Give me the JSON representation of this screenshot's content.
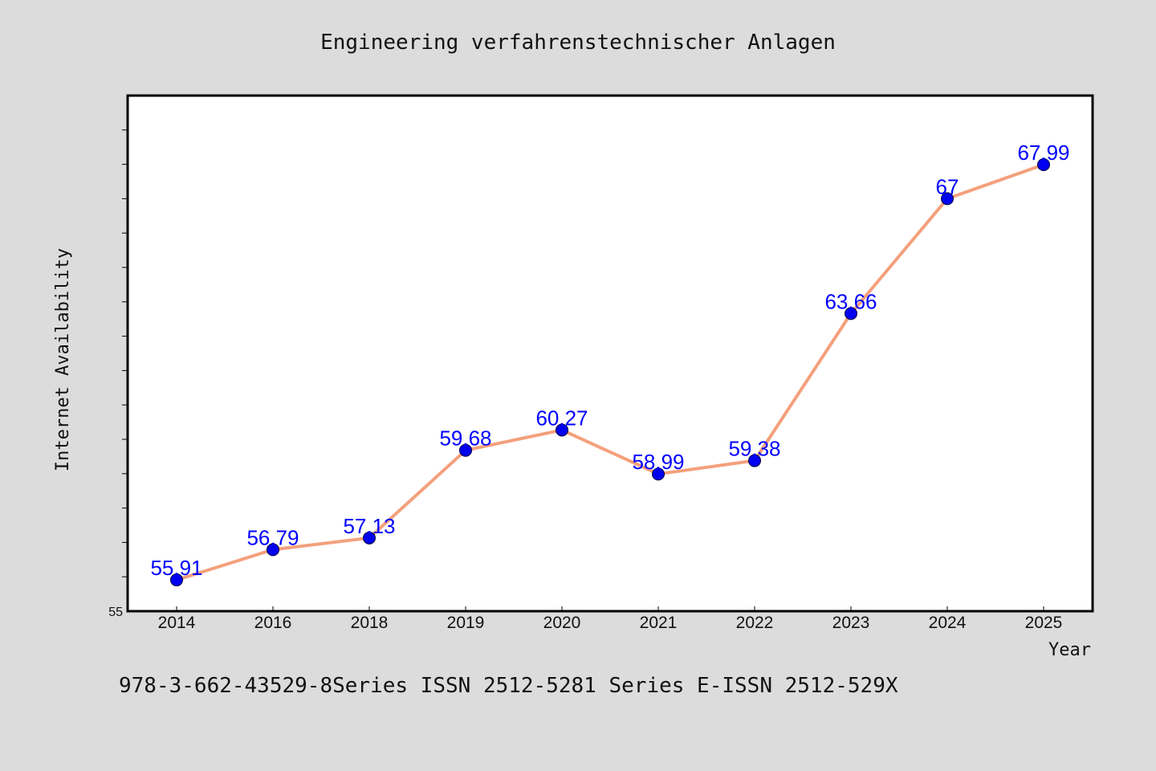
{
  "chart_data": {
    "type": "line",
    "title": "Engineering verfahrenstechnischer Anlagen",
    "xlabel": "Year",
    "ylabel": "Internet Availability",
    "categories": [
      "2014",
      "2016",
      "2018",
      "2019",
      "2020",
      "2021",
      "2022",
      "2023",
      "2024",
      "2025"
    ],
    "values": [
      55.91,
      56.79,
      57.13,
      59.68,
      60.27,
      58.99,
      59.38,
      63.66,
      67,
      67.99
    ],
    "data_labels": [
      "55.91",
      "56.79",
      "57.13",
      "59.68",
      "60.27",
      "58.99",
      "59.38",
      "63.66",
      "67",
      "67.99"
    ],
    "ylim": [
      55,
      70
    ],
    "y_tick_labels": [
      "55"
    ],
    "grid": false,
    "legend": "none",
    "colors": {
      "line": "#f4a07c",
      "marker": "#0000f0",
      "data_label": "#0000ff",
      "plot_background": "#ffffff",
      "figure_background": "#dcdcdc"
    }
  },
  "footer": {
    "text": "978-3-662-43529-8Series ISSN 2512-5281 Series E-ISSN 2512-529X"
  }
}
